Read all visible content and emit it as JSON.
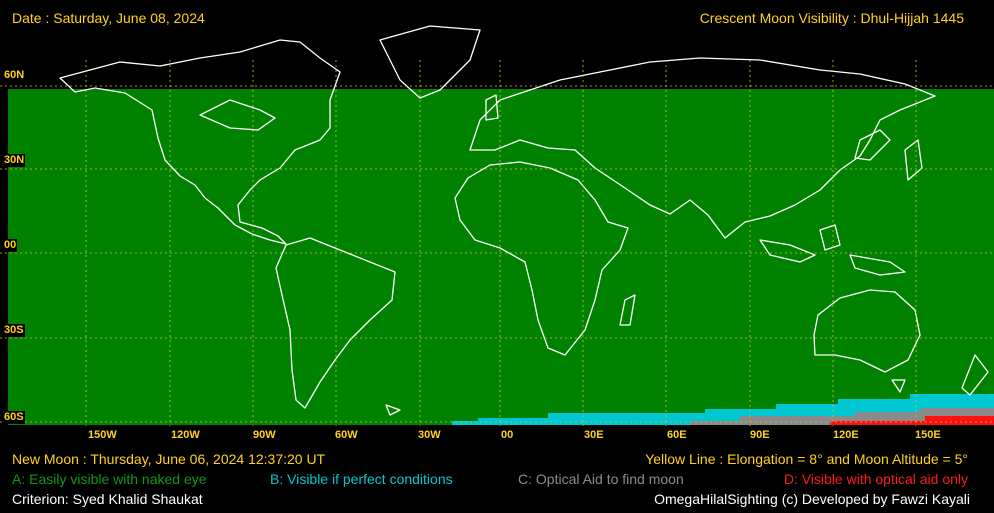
{
  "header": {
    "date": "Date : Saturday, June 08, 2024",
    "title": "Crescent Moon Visibility : Dhul-Hijjah  1445"
  },
  "lat_labels": [
    "60N",
    "30N",
    "00",
    "30S",
    "60S"
  ],
  "lon_labels": [
    "150W",
    "120W",
    "90W",
    "60W",
    "30W",
    "00",
    "30E",
    "60E",
    "90E",
    "120E",
    "150E"
  ],
  "footer": {
    "new_moon": "New Moon : Thursday, June 06, 2024  12:37:20  UT",
    "yellow_line": "Yellow Line : Elongation = 8° and Moon Altitude = 5°",
    "criterion": "Criterion: Syed Khalid Shaukat",
    "credit": "OmegaHilalSighting  (c)  Developed by Fawzi Kayali"
  },
  "legend": [
    {
      "label": "A: Easily visible with naked eye",
      "color": "#008a00"
    },
    {
      "label": "B: Visible if perfect conditions",
      "color": "#00c8d2"
    },
    {
      "label": "C: Optical Aid to find moon",
      "color": "#8c8c8c"
    },
    {
      "label": "D: Visible with optical aid only",
      "color": "#ff1a1a"
    }
  ],
  "colors": {
    "zone_a": "#008200",
    "zone_b": "#00c8d2",
    "zone_c": "#8a8a8a",
    "zone_d": "#ff0000",
    "grid": "#c8c832",
    "coast": "#ffffff",
    "labels": "#ffd21e"
  },
  "visibility_zones": {
    "a": {
      "lat_from": 60,
      "lat_to": -60,
      "lon_from": -180,
      "lon_to": 180
    },
    "b_steps": [
      {
        "lon_from": -17.5,
        "lat_bottom_from": -57.5
      },
      {
        "lon_from": 7.5,
        "lat_bottom_from": -56.5
      },
      {
        "lon_from": 50,
        "lat_bottom_from": -55
      },
      {
        "lon_from": 80,
        "lat_bottom_from": -54
      },
      {
        "lon_from": 100,
        "lat_bottom_from": -52
      },
      {
        "lon_from": 120,
        "lat_bottom_from": -50
      },
      {
        "lon_from": 150,
        "lat_bottom_from": -48
      },
      {
        "lon_from": 165,
        "lat_bottom_from": -47
      }
    ]
  }
}
